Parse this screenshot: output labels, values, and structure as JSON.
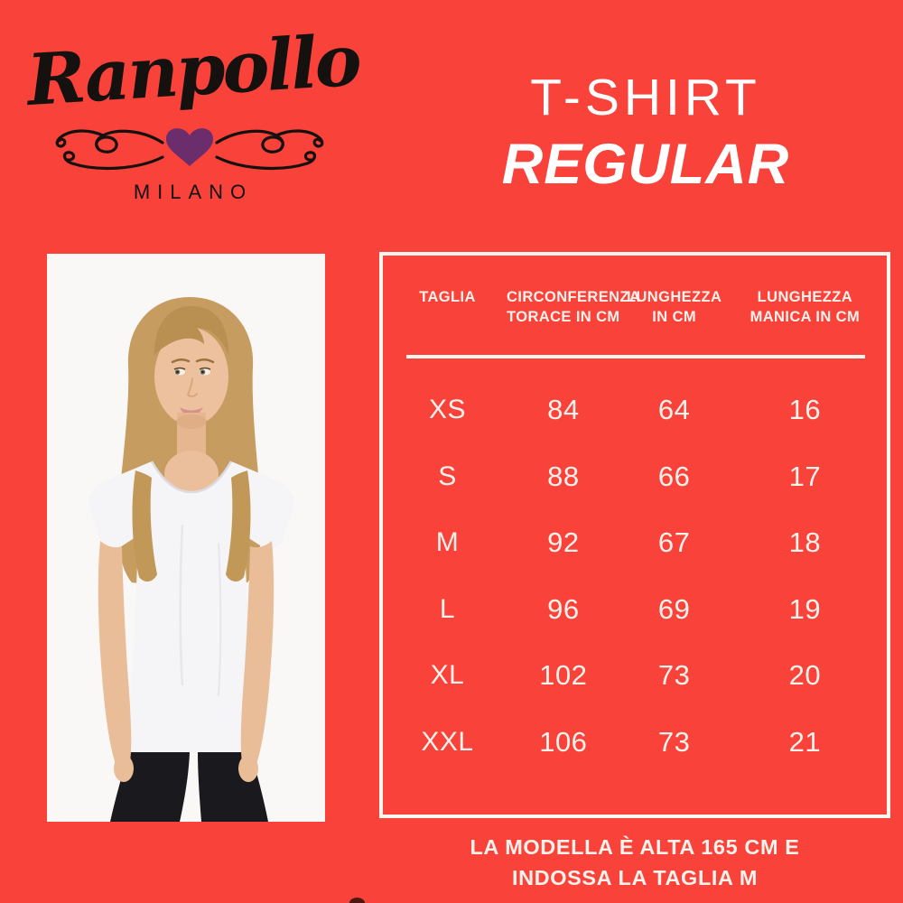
{
  "colors": {
    "background": "#F8423A",
    "ink": "#15110e",
    "heart": "#6B2D6B",
    "table_text": "#FBF2EC",
    "photo_background": "#FAF8F7"
  },
  "brand": {
    "name": "Ranpollo",
    "city": "MILANO",
    "ornament": "flourish-with-heart"
  },
  "title": {
    "line1": "T-SHIRT",
    "line2": "REGULAR"
  },
  "photo": {
    "alt": "Blonde model wearing white regular t-shirt and black leggings on white background"
  },
  "size_table": {
    "columns": [
      {
        "line1": "TAGLIA",
        "line2": ""
      },
      {
        "line1": "CIRCONFERENZA",
        "line2": "TORACE IN CM"
      },
      {
        "line1": "LUNGHEZZA",
        "line2": "IN CM"
      },
      {
        "line1": "LUNGHEZZA",
        "line2": "MANICA IN CM"
      }
    ],
    "rows": [
      [
        "XS",
        "84",
        "64",
        "16"
      ],
      [
        "S",
        "88",
        "66",
        "17"
      ],
      [
        "M",
        "92",
        "67",
        "18"
      ],
      [
        "L",
        "96",
        "69",
        "19"
      ],
      [
        "XL",
        "102",
        "73",
        "20"
      ],
      [
        "XXL",
        "106",
        "73",
        "21"
      ]
    ]
  },
  "footer": {
    "line1": "LA MODELLA È ALTA 165 CM E",
    "line2": "INDOSSA LA TAGLIA M"
  }
}
